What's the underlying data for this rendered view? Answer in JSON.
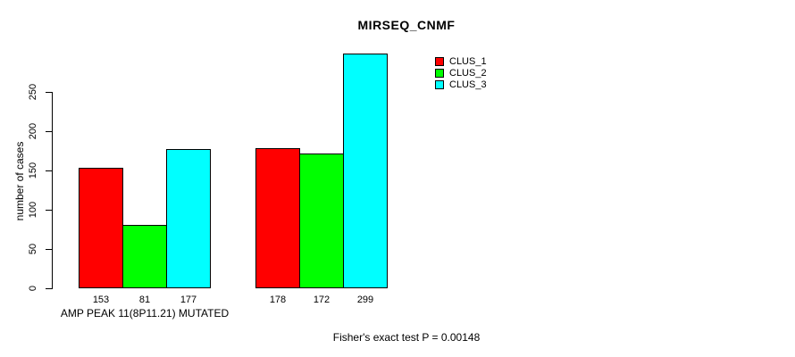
{
  "chart_data": {
    "type": "bar",
    "title": "MIRSEQ_CNMF",
    "ylabel": "number of cases",
    "xlabel": "AMP PEAK 11(8P11.21) MUTATED",
    "annotation": "Fisher's exact test P = 0.00148",
    "ylim": [
      0,
      299
    ],
    "yticks": [
      0,
      50,
      100,
      150,
      200,
      250
    ],
    "grid": false,
    "legend_position": "top-right",
    "categories": [
      "AMP PEAK 11(8P11.21) MUTATED",
      ""
    ],
    "series": [
      {
        "name": "CLUS_1",
        "color": "#ff0000",
        "values": [
          153,
          178
        ]
      },
      {
        "name": "CLUS_2",
        "color": "#00ff00",
        "values": [
          81,
          172
        ]
      },
      {
        "name": "CLUS_3",
        "color": "#00ffff",
        "values": [
          177,
          299
        ]
      }
    ]
  }
}
